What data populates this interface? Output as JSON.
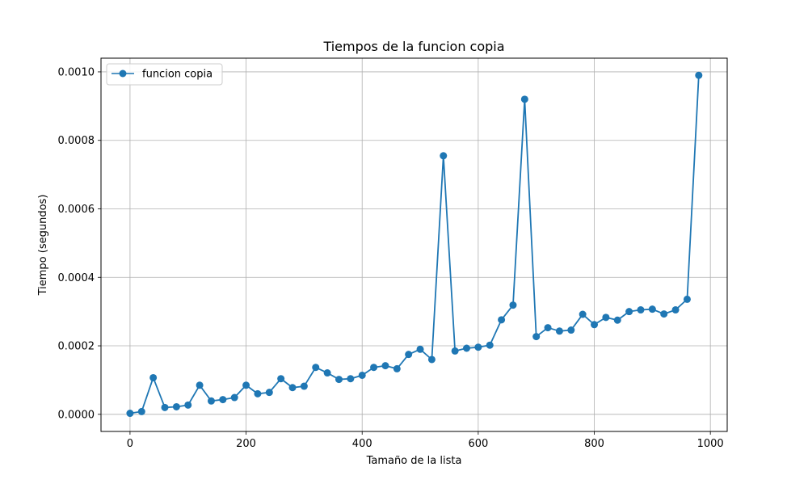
{
  "chart_data": {
    "type": "line",
    "title": "Tiempos de la funcion copia",
    "xlabel": "Tamaño de la lista",
    "ylabel": "Tiempo (segundos)",
    "xlim": [
      -50,
      1029
    ],
    "ylim": [
      -5e-05,
      0.00104
    ],
    "xticks": [
      0,
      200,
      400,
      600,
      800,
      1000
    ],
    "xtick_labels": [
      "0",
      "200",
      "400",
      "600",
      "800",
      "1000"
    ],
    "yticks": [
      0.0,
      0.0002,
      0.0004,
      0.0006,
      0.0008,
      0.001
    ],
    "ytick_labels": [
      "0.0000",
      "0.0002",
      "0.0004",
      "0.0006",
      "0.0008",
      "0.0010"
    ],
    "grid": true,
    "legend_position": "top-left",
    "series": [
      {
        "name": "funcion copia",
        "color": "#1f77b4",
        "marker": "circle",
        "x": [
          0,
          20,
          40,
          60,
          80,
          100,
          120,
          140,
          160,
          180,
          200,
          220,
          240,
          260,
          280,
          300,
          320,
          340,
          360,
          380,
          400,
          420,
          440,
          460,
          480,
          500,
          520,
          540,
          560,
          580,
          600,
          620,
          640,
          660,
          680,
          700,
          720,
          740,
          760,
          780,
          800,
          820,
          840,
          860,
          880,
          900,
          920,
          940,
          960,
          980
        ],
        "y": [
          3e-06,
          8e-06,
          0.000107,
          2e-05,
          2.2e-05,
          2.7e-05,
          8.5e-05,
          3.9e-05,
          4.3e-05,
          4.9e-05,
          8.5e-05,
          6e-05,
          6.4e-05,
          0.000104,
          7.8e-05,
          8.2e-05,
          0.000137,
          0.000121,
          0.000102,
          0.000104,
          0.000114,
          0.000137,
          0.000142,
          0.000133,
          0.000175,
          0.00019,
          0.00016,
          0.000755,
          0.000185,
          0.000193,
          0.000196,
          0.000202,
          0.000276,
          0.000319,
          0.00092,
          0.000227,
          0.000253,
          0.000243,
          0.000246,
          0.000292,
          0.000262,
          0.000283,
          0.000275,
          0.0003,
          0.000305,
          0.000307,
          0.000293,
          0.000305,
          0.000336,
          0.00099
        ]
      }
    ]
  }
}
